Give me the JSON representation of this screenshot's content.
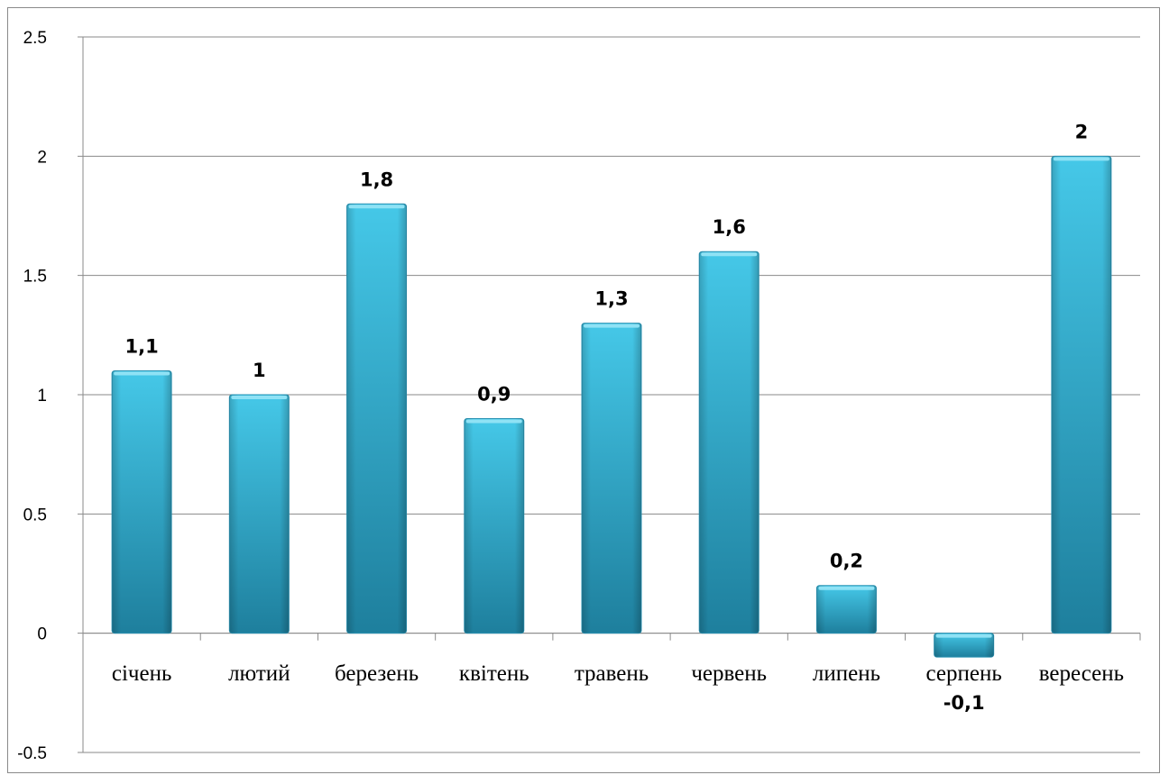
{
  "chart_data": {
    "type": "bar",
    "title": "",
    "xlabel": "",
    "ylabel": "",
    "categories": [
      "січень",
      "лютий",
      "березень",
      "квітень",
      "травень",
      "червень",
      "липень",
      "серпень",
      "вересень"
    ],
    "values": [
      1.1,
      1,
      1.8,
      0.9,
      1.3,
      1.6,
      0.2,
      -0.1,
      2
    ],
    "data_labels": [
      "1,1",
      "1",
      "1,8",
      "0,9",
      "1,3",
      "1,6",
      "0,2",
      "-0,1",
      "2"
    ],
    "ylim": [
      -0.5,
      2.5
    ],
    "yticks": [
      -0.5,
      0,
      0.5,
      1,
      1.5,
      2,
      2.5
    ],
    "ytick_labels": [
      "-0.5",
      "0",
      "0.5",
      "1",
      "1.5",
      "2",
      "2.5"
    ],
    "grid": true,
    "legend": "none",
    "colors": {
      "bar_light": "#45c8e8",
      "bar_mid": "#32acd0",
      "bar_dark": "#1e7f9d",
      "bar_top": "#8fe2f5",
      "grid": "#8a8a8a"
    }
  }
}
